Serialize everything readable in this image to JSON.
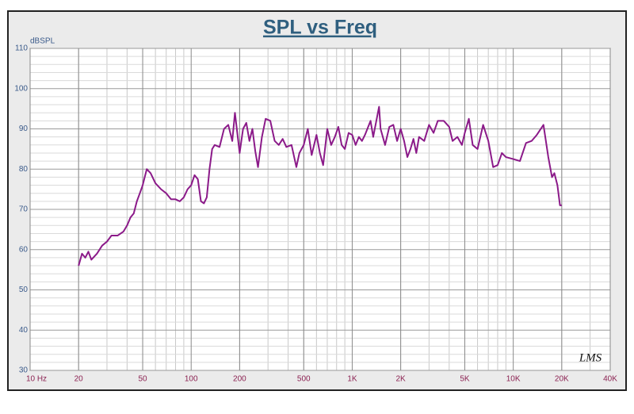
{
  "chart_data": {
    "type": "line",
    "title": "SPL vs Freq",
    "y_label": "dBSPL",
    "watermark": "LMS",
    "xscale": "log",
    "grid": true,
    "color": "#8b1a89",
    "xlim": [
      10,
      40000
    ],
    "ylim": [
      30,
      110
    ],
    "yticks": [
      30,
      40,
      50,
      60,
      70,
      80,
      90,
      100,
      110
    ],
    "xticks": [
      {
        "value": 10,
        "label": "10 Hz"
      },
      20,
      50,
      100,
      200,
      500,
      {
        "value": 1000,
        "label": "1K"
      },
      {
        "value": 2000,
        "label": "2K"
      },
      {
        "value": 5000,
        "label": "5K"
      },
      {
        "value": 10000,
        "label": "10K"
      },
      {
        "value": 20000,
        "label": "20K"
      },
      {
        "value": 40000,
        "label": "40K"
      }
    ],
    "x": [
      20,
      21,
      22,
      23,
      24,
      26,
      28,
      30,
      32,
      35,
      38,
      40,
      42,
      44,
      46,
      48,
      50,
      53,
      56,
      60,
      65,
      70,
      75,
      80,
      85,
      90,
      95,
      100,
      105,
      110,
      115,
      120,
      125,
      130,
      135,
      140,
      150,
      160,
      170,
      180,
      187,
      200,
      210,
      220,
      230,
      240,
      250,
      260,
      275,
      290,
      310,
      330,
      350,
      370,
      390,
      420,
      450,
      470,
      500,
      530,
      560,
      600,
      630,
      660,
      700,
      740,
      780,
      820,
      860,
      900,
      950,
      1000,
      1050,
      1100,
      1150,
      1200,
      1300,
      1350,
      1468,
      1500,
      1600,
      1700,
      1800,
      1900,
      2000,
      2100,
      2200,
      2300,
      2400,
      2500,
      2600,
      2800,
      3000,
      3200,
      3400,
      3700,
      4000,
      4200,
      4500,
      4800,
      5000,
      5300,
      5600,
      6000,
      6500,
      7000,
      7500,
      8000,
      8500,
      9000,
      10000,
      11000,
      12000,
      13000,
      14000,
      15400,
      16500,
      17400,
      18000,
      18800,
      19500,
      20000
    ],
    "values": [
      56,
      59,
      58,
      59.5,
      57.5,
      59,
      61,
      62,
      63.5,
      63.5,
      64.5,
      66,
      68,
      69,
      72,
      74,
      76,
      80,
      79,
      76.5,
      75,
      74,
      72.5,
      72.5,
      72,
      73,
      75,
      76,
      78.5,
      77.5,
      72,
      71.5,
      73,
      80,
      85,
      86,
      85.5,
      90,
      91,
      87,
      94,
      84,
      90,
      91.5,
      87,
      90,
      84.5,
      80.5,
      88,
      92.5,
      92,
      87,
      86,
      87.5,
      85.5,
      86,
      80.5,
      84,
      86,
      90,
      83.5,
      88.5,
      84,
      81,
      90,
      86,
      88,
      90.5,
      86,
      85,
      89,
      88.5,
      86,
      88,
      87,
      88.5,
      92,
      88,
      95.5,
      90,
      86,
      90.5,
      91,
      87,
      90,
      87,
      83,
      85,
      87.5,
      84,
      88,
      87,
      91,
      89,
      92,
      92,
      90.5,
      87,
      88,
      86,
      89,
      92.5,
      86,
      85,
      91,
      87,
      80.5,
      81,
      84,
      83,
      82.5,
      82,
      86.5,
      87,
      88.5,
      91,
      83,
      78,
      79,
      76,
      71,
      71
    ]
  }
}
